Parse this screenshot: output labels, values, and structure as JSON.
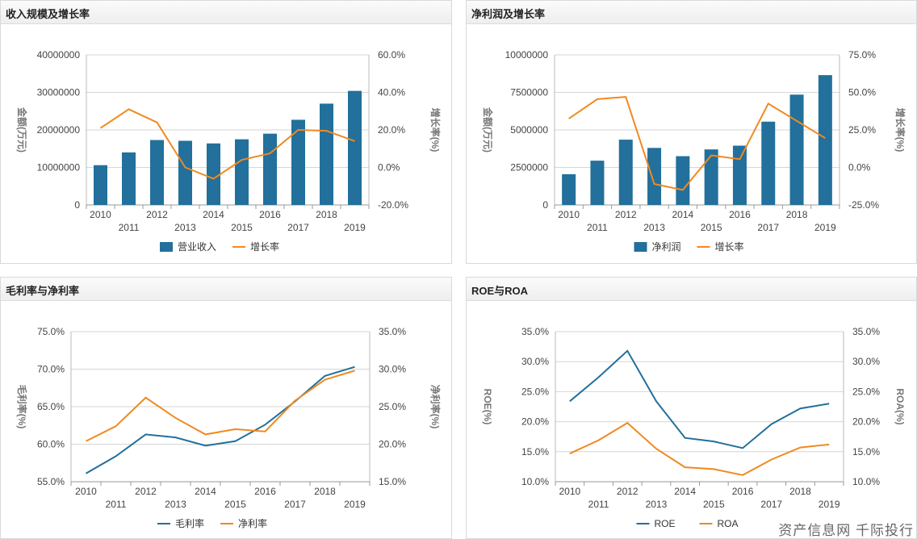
{
  "watermark": "资产信息网  千际投行",
  "colors": {
    "blue": "#22709b",
    "orange": "#ef8a22"
  },
  "chart_data": [
    {
      "id": "revenue",
      "title": "收入规模及增长率",
      "type": "bar+line",
      "categories": [
        "2010",
        "2011",
        "2012",
        "2013",
        "2014",
        "2015",
        "2016",
        "2017",
        "2018",
        "2019"
      ],
      "left_axis": {
        "label": "金额(万元)",
        "min": 0,
        "max": 40000000,
        "ticks": [
          "0",
          "10000000",
          "20000000",
          "30000000",
          "40000000"
        ],
        "tick_values": [
          0,
          10000000,
          20000000,
          30000000,
          40000000
        ]
      },
      "right_axis": {
        "label": "增长率(%)",
        "min": -20,
        "max": 60,
        "ticks": [
          "-20.0%",
          "0.0%",
          "20.0%",
          "40.0%",
          "60.0%"
        ],
        "tick_values": [
          -20,
          0,
          20,
          40,
          60
        ]
      },
      "series": [
        {
          "name": "营业收入",
          "kind": "bar",
          "axis": "left",
          "values": [
            10600000,
            14000000,
            17300000,
            17100000,
            16400000,
            17500000,
            19000000,
            22700000,
            27000000,
            30400000
          ]
        },
        {
          "name": "增长率",
          "kind": "line",
          "axis": "right",
          "values": [
            21,
            31,
            24,
            0,
            -6,
            4,
            7.5,
            20,
            19.5,
            14
          ]
        }
      ]
    },
    {
      "id": "net-profit",
      "title": "净利润及增长率",
      "type": "bar+line",
      "categories": [
        "2010",
        "2011",
        "2012",
        "2013",
        "2014",
        "2015",
        "2016",
        "2017",
        "2018",
        "2019"
      ],
      "left_axis": {
        "label": "金额(万元)",
        "min": 0,
        "max": 10000000,
        "ticks": [
          "0",
          "2500000",
          "5000000",
          "7500000",
          "10000000"
        ],
        "tick_values": [
          0,
          2500000,
          5000000,
          7500000,
          10000000
        ]
      },
      "right_axis": {
        "label": "增长率(%)",
        "min": -25,
        "max": 75,
        "ticks": [
          "-25.0%",
          "0.0%",
          "25.0%",
          "50.0%",
          "75.0%"
        ],
        "tick_values": [
          -25,
          0,
          25,
          50,
          75
        ]
      },
      "series": [
        {
          "name": "净利润",
          "kind": "bar",
          "axis": "left",
          "values": [
            2050000,
            2950000,
            4350000,
            3800000,
            3250000,
            3700000,
            3950000,
            5550000,
            7350000,
            8650000
          ]
        },
        {
          "name": "增长率",
          "kind": "line",
          "axis": "right",
          "values": [
            32.5,
            45.5,
            47,
            -11,
            -15,
            8,
            5.5,
            42.5,
            31,
            19.5
          ]
        }
      ]
    },
    {
      "id": "margins",
      "title": "毛利率与净利率",
      "type": "line",
      "categories": [
        "2010",
        "2011",
        "2012",
        "2013",
        "2014",
        "2015",
        "2016",
        "2017",
        "2018",
        "2019"
      ],
      "left_axis": {
        "label": "毛利率(%)",
        "min": 55,
        "max": 75,
        "ticks": [
          "55.0%",
          "60.0%",
          "65.0%",
          "70.0%",
          "75.0%"
        ],
        "tick_values": [
          55,
          60,
          65,
          70,
          75
        ]
      },
      "right_axis": {
        "label": "净利率(%)",
        "min": 15,
        "max": 35,
        "ticks": [
          "15.0%",
          "20.0%",
          "25.0%",
          "30.0%",
          "35.0%"
        ],
        "tick_values": [
          15,
          20,
          25,
          30,
          35
        ]
      },
      "series": [
        {
          "name": "毛利率",
          "kind": "line",
          "axis": "left",
          "values": [
            56.1,
            58.4,
            61.3,
            60.9,
            59.8,
            60.4,
            62.6,
            65.7,
            69.1,
            70.3
          ]
        },
        {
          "name": "净利率",
          "kind": "line",
          "axis": "right",
          "values": [
            20.4,
            22.4,
            26.2,
            23.5,
            21.3,
            22,
            21.7,
            25.8,
            28.6,
            29.8
          ]
        }
      ]
    },
    {
      "id": "roe-roa",
      "title": "ROE与ROA",
      "type": "line",
      "categories": [
        "2010",
        "2011",
        "2012",
        "2013",
        "2014",
        "2015",
        "2016",
        "2017",
        "2018",
        "2019"
      ],
      "left_axis": {
        "label": "ROE(%)",
        "min": 10,
        "max": 35,
        "ticks": [
          "10.0%",
          "15.0%",
          "20.0%",
          "25.0%",
          "30.0%",
          "35.0%"
        ],
        "tick_values": [
          10,
          15,
          20,
          25,
          30,
          35
        ]
      },
      "right_axis": {
        "label": "ROA(%)",
        "min": 10,
        "max": 35,
        "ticks": [
          "10.0%",
          "15.0%",
          "20.0%",
          "25.0%",
          "30.0%",
          "35.0%"
        ],
        "tick_values": [
          10,
          15,
          20,
          25,
          30,
          35
        ]
      },
      "series": [
        {
          "name": "ROE",
          "kind": "line",
          "axis": "left",
          "values": [
            23.4,
            27.4,
            31.8,
            23.4,
            17.3,
            16.7,
            15.6,
            19.6,
            22.2,
            23
          ]
        },
        {
          "name": "ROA",
          "kind": "line",
          "axis": "right",
          "values": [
            14.7,
            16.9,
            19.8,
            15.5,
            12.4,
            12.1,
            11.1,
            13.7,
            15.7,
            16.2
          ]
        }
      ]
    }
  ]
}
